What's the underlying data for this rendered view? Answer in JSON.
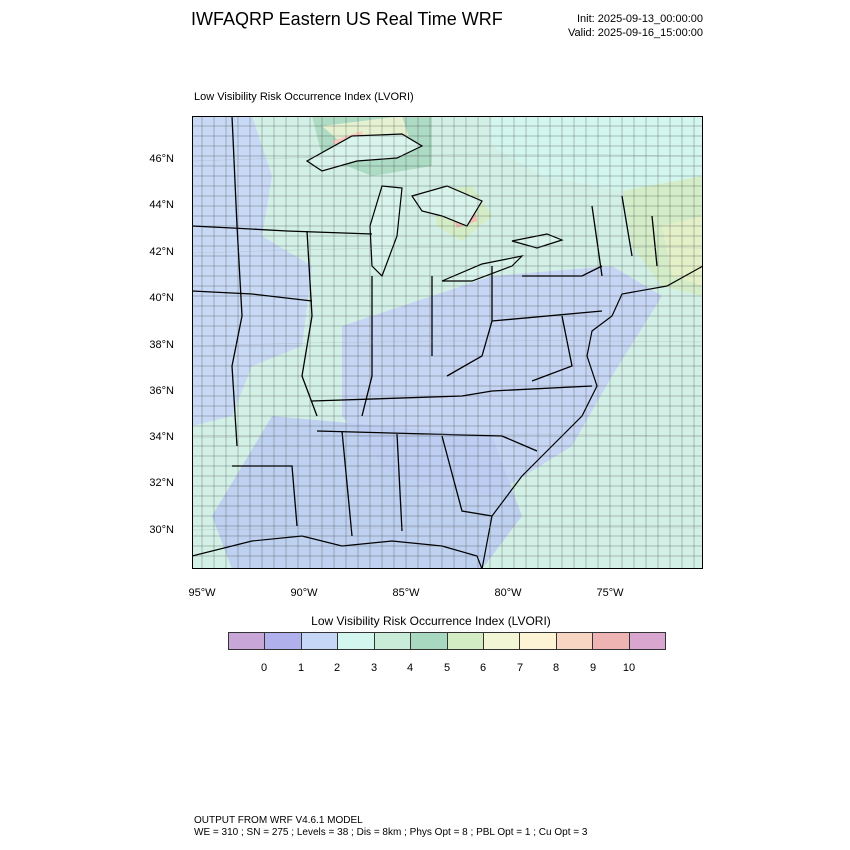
{
  "header": {
    "title": "IWFAQRP Eastern US Real Time WRF",
    "init": "Init: 2025-09-13_00:00:00",
    "valid": "Valid: 2025-09-16_15:00:00"
  },
  "map": {
    "field_title": "Low Visibility Risk Occurrence Index   (LVORI)",
    "lat_labels": [
      "46°N",
      "44°N",
      "42°N",
      "40°N",
      "38°N",
      "36°N",
      "34°N",
      "32°N",
      "30°N"
    ],
    "lon_labels": [
      "95°W",
      "90°W",
      "85°W",
      "80°W",
      "75°W"
    ]
  },
  "legend": {
    "title": "Low Visibility Risk Occurrence Index  (LVORI)",
    "colors": [
      "#c9a6d8",
      "#b0b0ec",
      "#c6d6f6",
      "#d3f6ee",
      "#c9ecd8",
      "#a8d8bf",
      "#d4ecc4",
      "#f3f6d4",
      "#fdf4d6",
      "#f8d4c2",
      "#eeb4b4",
      "#d8a6cf"
    ],
    "tick_labels": [
      "0",
      "1",
      "2",
      "3",
      "4",
      "5",
      "6",
      "7",
      "8",
      "9",
      "10"
    ]
  },
  "footer": {
    "line1": "OUTPUT FROM WRF V4.6.1 MODEL",
    "line2": "WE = 310 ; SN = 275 ; Levels = 38 ; Dis = 8km ; Phys Opt = 8 ; PBL Opt = 1 ; Cu Opt = 3"
  }
}
